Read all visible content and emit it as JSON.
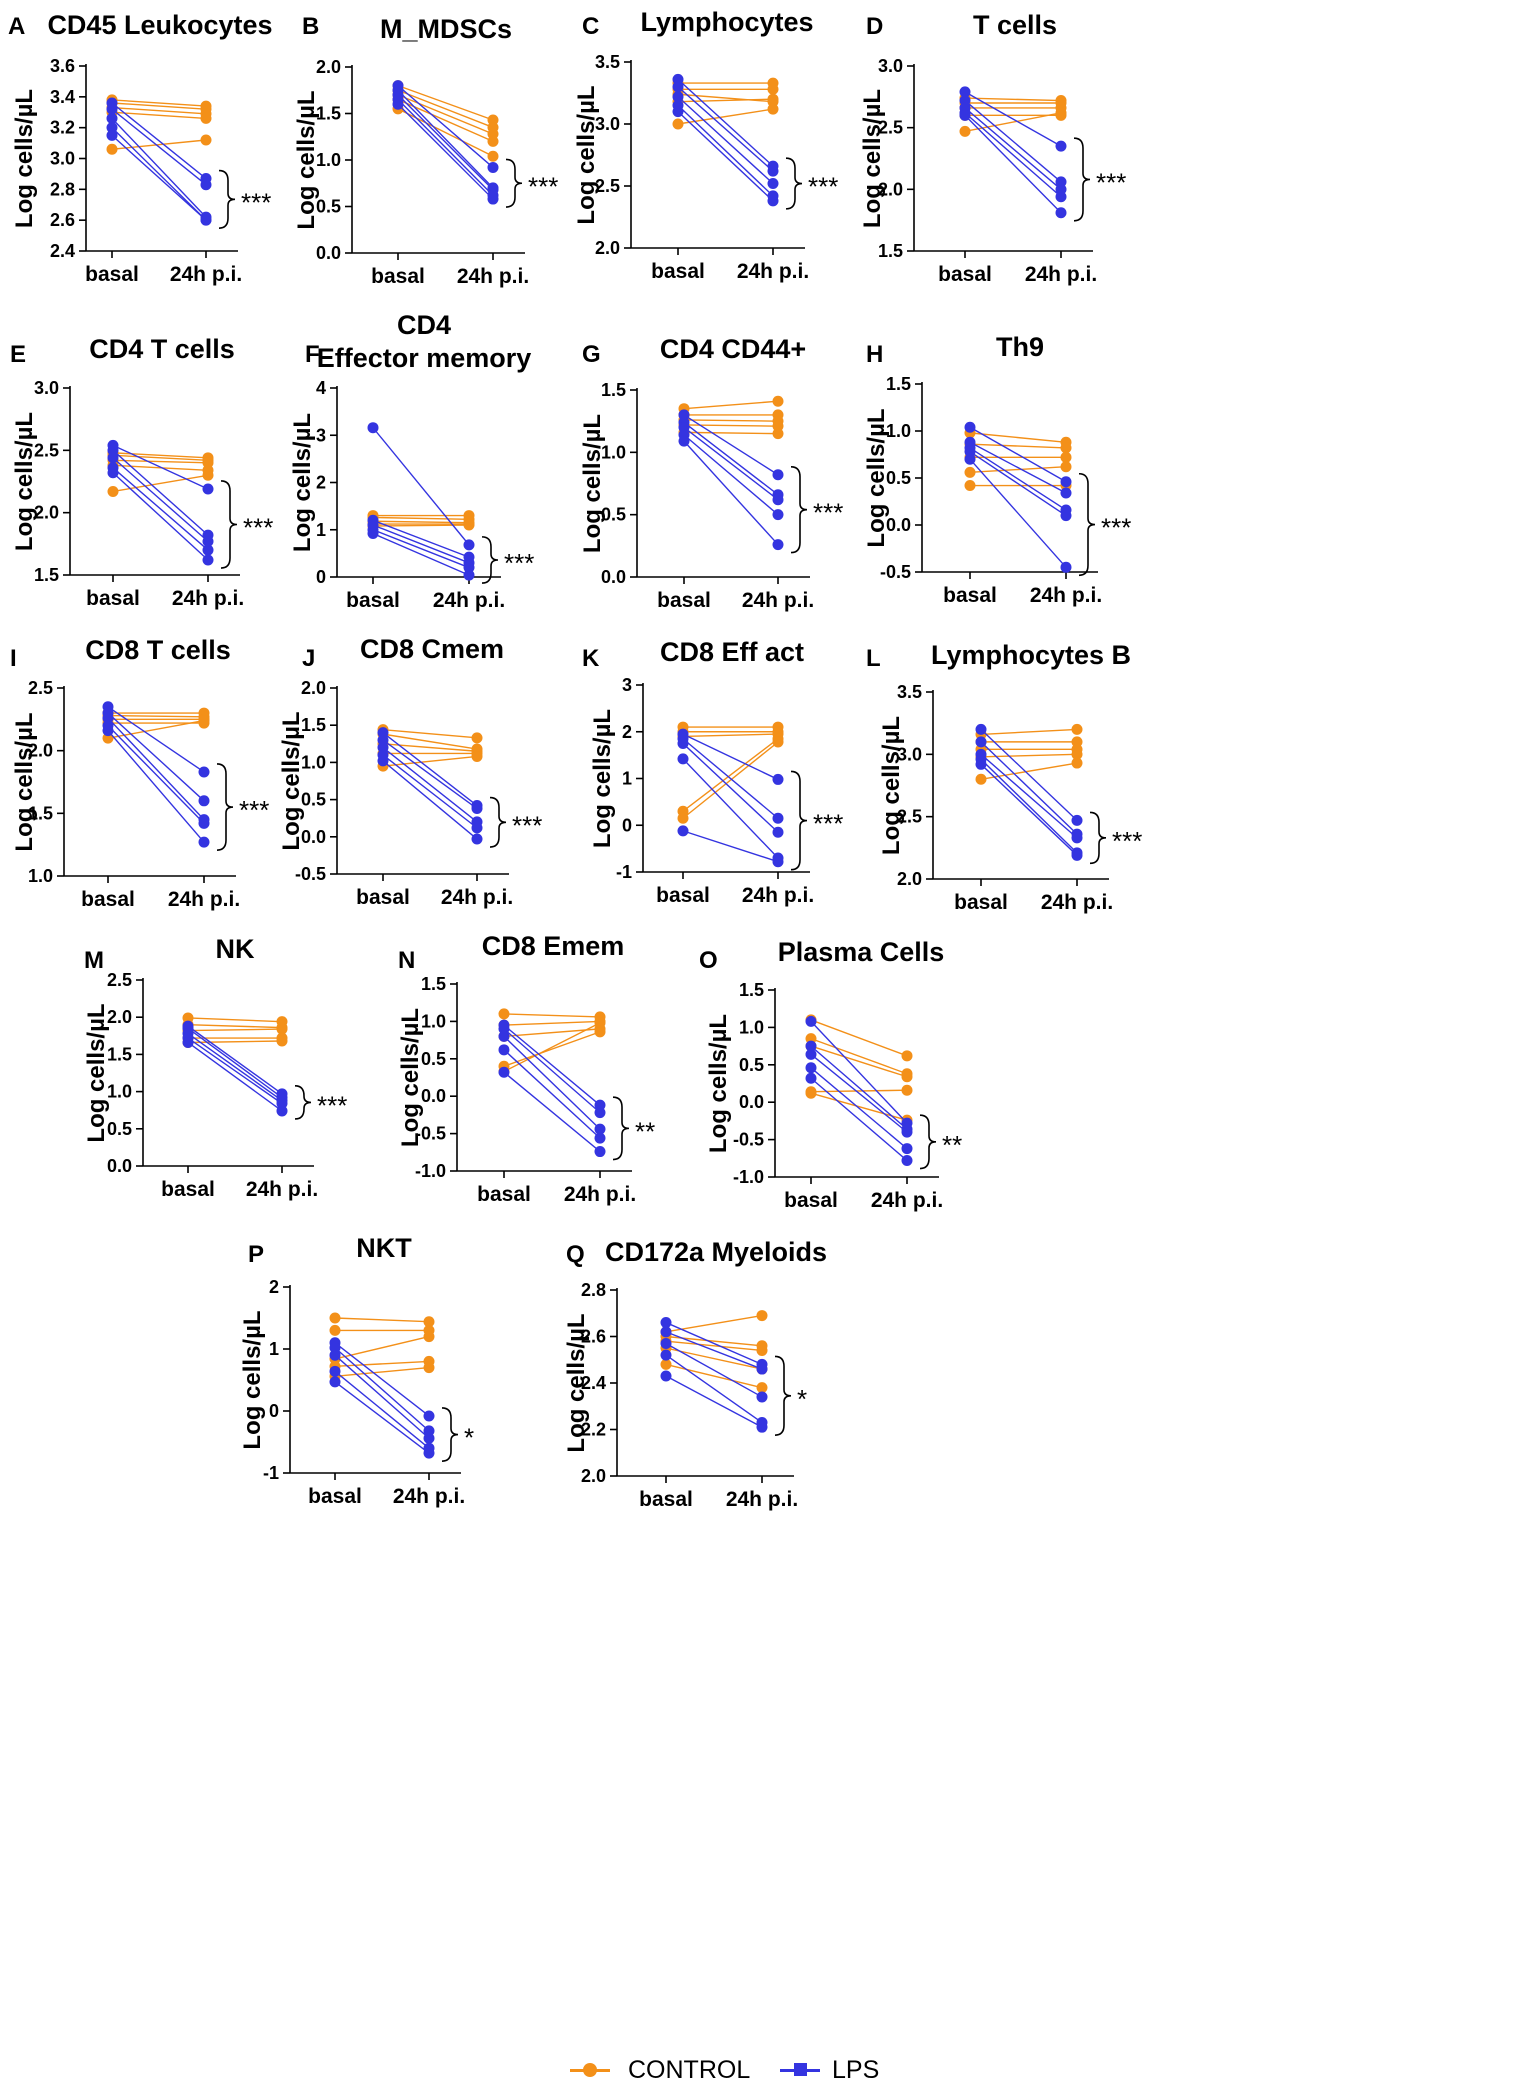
{
  "colors": {
    "control": "#F39019",
    "lps": "#3434E0",
    "axis": "#000000"
  },
  "legend": {
    "control_label": "CONTROL",
    "lps_label": "LPS"
  },
  "chart_data": [
    {
      "id": "A",
      "title": "CD45 Leukocytes",
      "ylabel": "Log cells/µL",
      "ylim": [
        2.4,
        3.6
      ],
      "ticks": [
        "2.4",
        "2.6",
        "2.8",
        "3.0",
        "3.2",
        "3.4",
        "3.6"
      ],
      "categories": [
        "basal",
        "24h p.i."
      ],
      "sig": "***",
      "control": [
        [
          3.38,
          3.34
        ],
        [
          3.36,
          3.32
        ],
        [
          3.33,
          3.29
        ],
        [
          3.3,
          3.26
        ],
        [
          3.06,
          3.12
        ]
      ],
      "lps": [
        [
          3.36,
          2.87
        ],
        [
          3.32,
          2.83
        ],
        [
          3.26,
          2.62
        ],
        [
          3.2,
          2.6
        ],
        [
          3.15,
          2.6
        ]
      ]
    },
    {
      "id": "B",
      "title": "M_MDSCs",
      "ylabel": "Log cells/µL",
      "ylim": [
        0.0,
        2.0
      ],
      "ticks": [
        "0.0",
        "0.5",
        "1.0",
        "1.5",
        "2.0"
      ],
      "categories": [
        "basal",
        "24h p.i."
      ],
      "sig": "***",
      "control": [
        [
          1.8,
          1.43
        ],
        [
          1.75,
          1.35
        ],
        [
          1.7,
          1.28
        ],
        [
          1.65,
          1.2
        ],
        [
          1.55,
          1.04
        ]
      ],
      "lps": [
        [
          1.8,
          0.92
        ],
        [
          1.75,
          0.7
        ],
        [
          1.7,
          0.68
        ],
        [
          1.65,
          0.62
        ],
        [
          1.6,
          0.58
        ]
      ]
    },
    {
      "id": "C",
      "title": "Lymphocytes",
      "ylabel": "Log cells/µL",
      "ylim": [
        2.0,
        3.5
      ],
      "ticks": [
        "2.0",
        "2.5",
        "3.0",
        "3.5"
      ],
      "categories": [
        "basal",
        "24h p.i."
      ],
      "sig": "***",
      "control": [
        [
          3.33,
          3.33
        ],
        [
          3.28,
          3.28
        ],
        [
          3.24,
          3.18
        ],
        [
          3.18,
          3.2
        ],
        [
          3.0,
          3.12
        ]
      ],
      "lps": [
        [
          3.36,
          2.66
        ],
        [
          3.3,
          2.62
        ],
        [
          3.22,
          2.52
        ],
        [
          3.15,
          2.42
        ],
        [
          3.1,
          2.38
        ]
      ]
    },
    {
      "id": "D",
      "title": "T cells",
      "ylabel": "Log cells/µL",
      "ylim": [
        1.5,
        3.0
      ],
      "ticks": [
        "1.5",
        "2.0",
        "2.5",
        "3.0"
      ],
      "categories": [
        "basal",
        "24h p.i."
      ],
      "sig": "***",
      "control": [
        [
          2.74,
          2.72
        ],
        [
          2.7,
          2.7
        ],
        [
          2.66,
          2.66
        ],
        [
          2.6,
          2.6
        ],
        [
          2.47,
          2.62
        ]
      ],
      "lps": [
        [
          2.79,
          2.35
        ],
        [
          2.72,
          2.06
        ],
        [
          2.66,
          2.0
        ],
        [
          2.62,
          1.94
        ],
        [
          2.6,
          1.81
        ]
      ]
    },
    {
      "id": "E",
      "title": "CD4 T cells",
      "ylabel": "Log cells/µL",
      "ylim": [
        1.5,
        3.0
      ],
      "ticks": [
        "1.5",
        "2.0",
        "2.5",
        "3.0"
      ],
      "categories": [
        "basal",
        "24h p.i."
      ],
      "sig": "***",
      "control": [
        [
          2.48,
          2.44
        ],
        [
          2.46,
          2.42
        ],
        [
          2.42,
          2.4
        ],
        [
          2.38,
          2.34
        ],
        [
          2.17,
          2.3
        ]
      ],
      "lps": [
        [
          2.54,
          2.19
        ],
        [
          2.5,
          1.82
        ],
        [
          2.44,
          1.77
        ],
        [
          2.36,
          1.7
        ],
        [
          2.32,
          1.62
        ]
      ]
    },
    {
      "id": "F",
      "title": "CD4\nEffector memory",
      "ylabel": "Log cells/µL",
      "ylim": [
        0,
        4
      ],
      "ticks": [
        "0",
        "1",
        "2",
        "3",
        "4"
      ],
      "categories": [
        "basal",
        "24h p.i."
      ],
      "sig": "***",
      "control": [
        [
          1.3,
          1.3
        ],
        [
          1.26,
          1.22
        ],
        [
          1.18,
          1.15
        ],
        [
          1.12,
          1.12
        ],
        [
          1.08,
          1.1
        ]
      ],
      "lps": [
        [
          3.16,
          0.68
        ],
        [
          1.2,
          0.42
        ],
        [
          1.1,
          0.3
        ],
        [
          1.0,
          0.2
        ],
        [
          0.92,
          0.04
        ]
      ]
    },
    {
      "id": "G",
      "title": "CD4 CD44+",
      "ylabel": "Log cells/µL",
      "ylim": [
        0.0,
        1.5
      ],
      "ticks": [
        "0.0",
        "0.5",
        "1.0",
        "1.5"
      ],
      "categories": [
        "basal",
        "24h p.i."
      ],
      "sig": "***",
      "control": [
        [
          1.35,
          1.41
        ],
        [
          1.3,
          1.3
        ],
        [
          1.26,
          1.25
        ],
        [
          1.22,
          1.21
        ],
        [
          1.16,
          1.15
        ]
      ],
      "lps": [
        [
          1.3,
          0.82
        ],
        [
          1.24,
          0.66
        ],
        [
          1.2,
          0.62
        ],
        [
          1.14,
          0.5
        ],
        [
          1.09,
          0.26
        ]
      ]
    },
    {
      "id": "H",
      "title": "Th9",
      "ylabel": "Log cells/µL",
      "ylim": [
        -0.5,
        1.5
      ],
      "ticks": [
        "-0.5",
        "0.0",
        "0.5",
        "1.0",
        "1.5"
      ],
      "categories": [
        "basal",
        "24h p.i."
      ],
      "sig": "***",
      "control": [
        [
          0.98,
          0.88
        ],
        [
          0.86,
          0.82
        ],
        [
          0.72,
          0.72
        ],
        [
          0.56,
          0.62
        ],
        [
          0.42,
          0.42
        ]
      ],
      "lps": [
        [
          1.04,
          0.46
        ],
        [
          0.88,
          0.34
        ],
        [
          0.82,
          0.16
        ],
        [
          0.78,
          0.1
        ],
        [
          0.7,
          -0.45
        ]
      ]
    },
    {
      "id": "I",
      "title": "CD8 T cells",
      "ylabel": "Log cells/µL",
      "ylim": [
        1.0,
        2.5
      ],
      "ticks": [
        "1.0",
        "1.5",
        "2.0",
        "2.5"
      ],
      "categories": [
        "basal",
        "24h p.i."
      ],
      "sig": "***",
      "control": [
        [
          2.3,
          2.3
        ],
        [
          2.28,
          2.27
        ],
        [
          2.25,
          2.25
        ],
        [
          2.22,
          2.22
        ],
        [
          2.1,
          2.24
        ]
      ],
      "lps": [
        [
          2.35,
          1.83
        ],
        [
          2.3,
          1.6
        ],
        [
          2.26,
          1.45
        ],
        [
          2.2,
          1.42
        ],
        [
          2.16,
          1.27
        ]
      ]
    },
    {
      "id": "J",
      "title": "CD8 Cmem",
      "ylabel": "Log cells/µL",
      "ylim": [
        -0.5,
        2.0
      ],
      "ticks": [
        "-0.5",
        "0.0",
        "0.5",
        "1.0",
        "1.5",
        "2.0"
      ],
      "categories": [
        "basal",
        "24h p.i."
      ],
      "sig": "***",
      "control": [
        [
          1.44,
          1.33
        ],
        [
          1.38,
          1.18
        ],
        [
          1.25,
          1.15
        ],
        [
          1.12,
          1.12
        ],
        [
          0.95,
          1.08
        ]
      ],
      "lps": [
        [
          1.4,
          0.42
        ],
        [
          1.3,
          0.38
        ],
        [
          1.2,
          0.2
        ],
        [
          1.1,
          0.12
        ],
        [
          1.02,
          -0.03
        ]
      ]
    },
    {
      "id": "K",
      "title": "CD8 Eff act",
      "ylabel": "Log cells/µL",
      "ylim": [
        -1,
        3
      ],
      "ticks": [
        "-1",
        "0",
        "1",
        "2",
        "3"
      ],
      "categories": [
        "basal",
        "24h p.i."
      ],
      "sig": "***",
      "control": [
        [
          2.1,
          2.1
        ],
        [
          2.0,
          2.0
        ],
        [
          1.9,
          1.95
        ],
        [
          0.3,
          1.85
        ],
        [
          0.15,
          1.78
        ]
      ],
      "lps": [
        [
          1.95,
          0.98
        ],
        [
          1.85,
          0.15
        ],
        [
          1.75,
          -0.15
        ],
        [
          1.42,
          -0.7
        ],
        [
          -0.12,
          -0.78
        ]
      ]
    },
    {
      "id": "L",
      "title": "Lymphocytes B",
      "ylabel": "Log cells/µL",
      "ylim": [
        2.0,
        3.5
      ],
      "ticks": [
        "2.0",
        "2.5",
        "3.0",
        "3.5"
      ],
      "categories": [
        "basal",
        "24h p.i."
      ],
      "sig": "***",
      "control": [
        [
          3.16,
          3.2
        ],
        [
          3.1,
          3.1
        ],
        [
          3.04,
          3.04
        ],
        [
          2.98,
          3.0
        ],
        [
          2.8,
          2.93
        ]
      ],
      "lps": [
        [
          3.2,
          2.47
        ],
        [
          3.1,
          2.36
        ],
        [
          3.0,
          2.33
        ],
        [
          2.96,
          2.21
        ],
        [
          2.92,
          2.19
        ]
      ]
    },
    {
      "id": "M",
      "title": "NK",
      "ylabel": "Log cells/µL",
      "ylim": [
        0.0,
        2.5
      ],
      "ticks": [
        "0.0",
        "0.5",
        "1.0",
        "1.5",
        "2.0",
        "2.5"
      ],
      "categories": [
        "basal",
        "24h p.i."
      ],
      "sig": "***",
      "control": [
        [
          1.99,
          1.94
        ],
        [
          1.9,
          1.86
        ],
        [
          1.82,
          1.84
        ],
        [
          1.72,
          1.72
        ],
        [
          1.66,
          1.68
        ]
      ],
      "lps": [
        [
          1.88,
          0.97
        ],
        [
          1.85,
          0.92
        ],
        [
          1.78,
          0.88
        ],
        [
          1.72,
          0.84
        ],
        [
          1.66,
          0.74
        ]
      ]
    },
    {
      "id": "N",
      "title": "CD8 Emem",
      "ylabel": "Log cells/µL",
      "ylim": [
        -1.0,
        1.5
      ],
      "ticks": [
        "-1.0",
        "-0.5",
        "0.0",
        "0.5",
        "1.0",
        "1.5"
      ],
      "categories": [
        "basal",
        "24h p.i."
      ],
      "sig": "**",
      "control": [
        [
          1.1,
          1.06
        ],
        [
          0.95,
          1.0
        ],
        [
          0.8,
          0.9
        ],
        [
          0.4,
          0.86
        ],
        [
          0.33,
          0.98
        ]
      ],
      "lps": [
        [
          0.95,
          -0.12
        ],
        [
          0.9,
          -0.22
        ],
        [
          0.8,
          -0.44
        ],
        [
          0.62,
          -0.56
        ],
        [
          0.32,
          -0.74
        ]
      ]
    },
    {
      "id": "O",
      "title": "Plasma Cells",
      "ylabel": "Log cells/µL",
      "ylim": [
        -1.0,
        1.5
      ],
      "ticks": [
        "-1.0",
        "-0.5",
        "0.0",
        "0.5",
        "1.0",
        "1.5"
      ],
      "categories": [
        "basal",
        "24h p.i."
      ],
      "sig": "**",
      "control": [
        [
          1.1,
          0.62
        ],
        [
          0.85,
          0.38
        ],
        [
          0.75,
          0.34
        ],
        [
          0.14,
          0.16
        ],
        [
          0.12,
          -0.24
        ]
      ],
      "lps": [
        [
          1.08,
          -0.28
        ],
        [
          0.75,
          -0.36
        ],
        [
          0.64,
          -0.4
        ],
        [
          0.46,
          -0.62
        ],
        [
          0.32,
          -0.78
        ]
      ]
    },
    {
      "id": "P",
      "title": "NKT",
      "ylabel": "Log cells/µL",
      "ylim": [
        -1,
        2
      ],
      "ticks": [
        "-1",
        "0",
        "1",
        "2"
      ],
      "categories": [
        "basal",
        "24h p.i."
      ],
      "sig": "*",
      "control": [
        [
          1.5,
          1.44
        ],
        [
          1.3,
          1.3
        ],
        [
          0.84,
          1.2
        ],
        [
          0.72,
          0.8
        ],
        [
          0.56,
          0.7
        ]
      ],
      "lps": [
        [
          1.1,
          -0.08
        ],
        [
          1.02,
          -0.32
        ],
        [
          0.9,
          -0.44
        ],
        [
          0.64,
          -0.6
        ],
        [
          0.47,
          -0.68
        ]
      ]
    },
    {
      "id": "Q",
      "title": "CD172a Myeloids",
      "ylabel": "Log cells/µL",
      "ylim": [
        2.0,
        2.8
      ],
      "ticks": [
        "2.0",
        "2.2",
        "2.4",
        "2.6",
        "2.8"
      ],
      "categories": [
        "basal",
        "24h p.i."
      ],
      "sig": "*",
      "control": [
        [
          2.62,
          2.69
        ],
        [
          2.6,
          2.56
        ],
        [
          2.58,
          2.54
        ],
        [
          2.55,
          2.46
        ],
        [
          2.48,
          2.38
        ]
      ],
      "lps": [
        [
          2.66,
          2.48
        ],
        [
          2.62,
          2.46
        ],
        [
          2.57,
          2.34
        ],
        [
          2.52,
          2.23
        ],
        [
          2.43,
          2.21
        ]
      ]
    }
  ]
}
